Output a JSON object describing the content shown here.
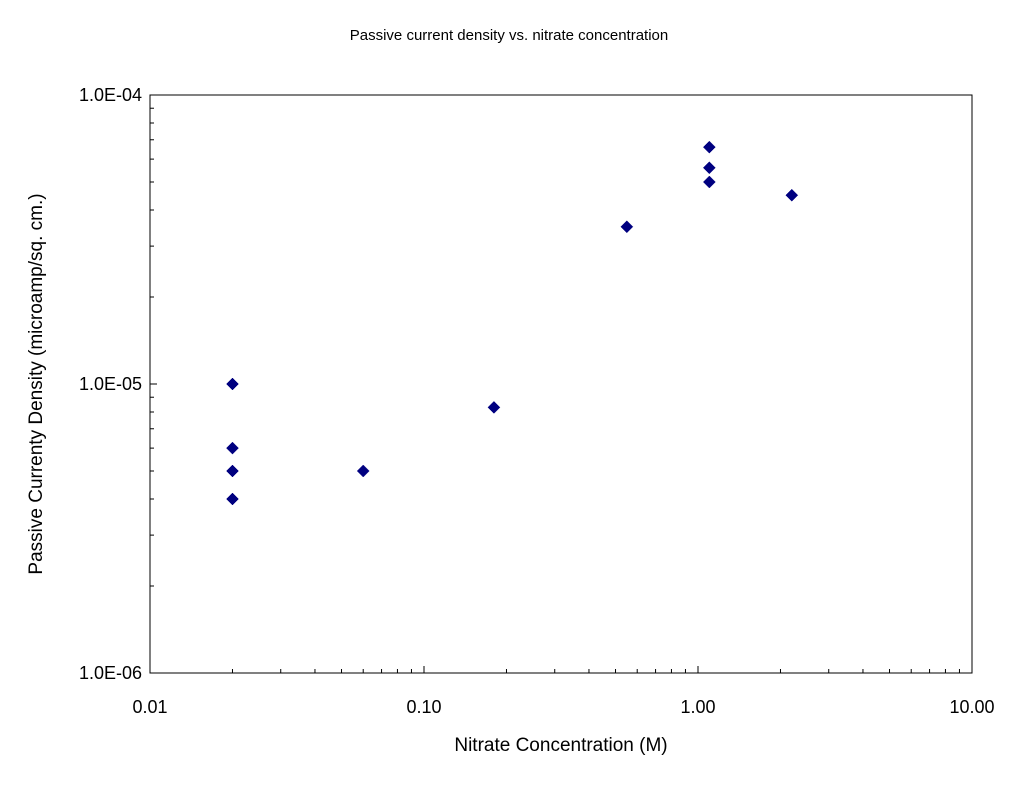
{
  "chart_data": {
    "type": "scatter",
    "title": "Passive current density vs. nitrate concentration",
    "xlabel": "Nitrate Concentration (M)",
    "ylabel": "Passive Currenty Density (microamp/sq. cm.)",
    "x_scale": "log",
    "y_scale": "log",
    "xlim": [
      0.01,
      10
    ],
    "ylim": [
      1e-06,
      0.0001
    ],
    "x_ticks": [
      0.01,
      0.1,
      1,
      10
    ],
    "x_tick_labels": [
      "0.01",
      "0.10",
      "1.00",
      "10.00"
    ],
    "y_ticks": [
      1e-06,
      1e-05,
      0.0001
    ],
    "y_tick_labels": [
      "1.0E-06",
      "1.0E-05",
      "1.0E-04"
    ],
    "grid": false,
    "legend": false,
    "marker": "diamond",
    "marker_color": "#000080",
    "series": [
      {
        "x": [
          0.02,
          0.02,
          0.02,
          0.02,
          0.06,
          0.18,
          0.55,
          1.1,
          1.1,
          1.1,
          2.2
        ],
        "y": [
          1e-05,
          6e-06,
          5e-06,
          4e-06,
          5e-06,
          8.3e-06,
          3.5e-05,
          6.6e-05,
          5.6e-05,
          5e-05,
          4.5e-05
        ]
      }
    ]
  }
}
